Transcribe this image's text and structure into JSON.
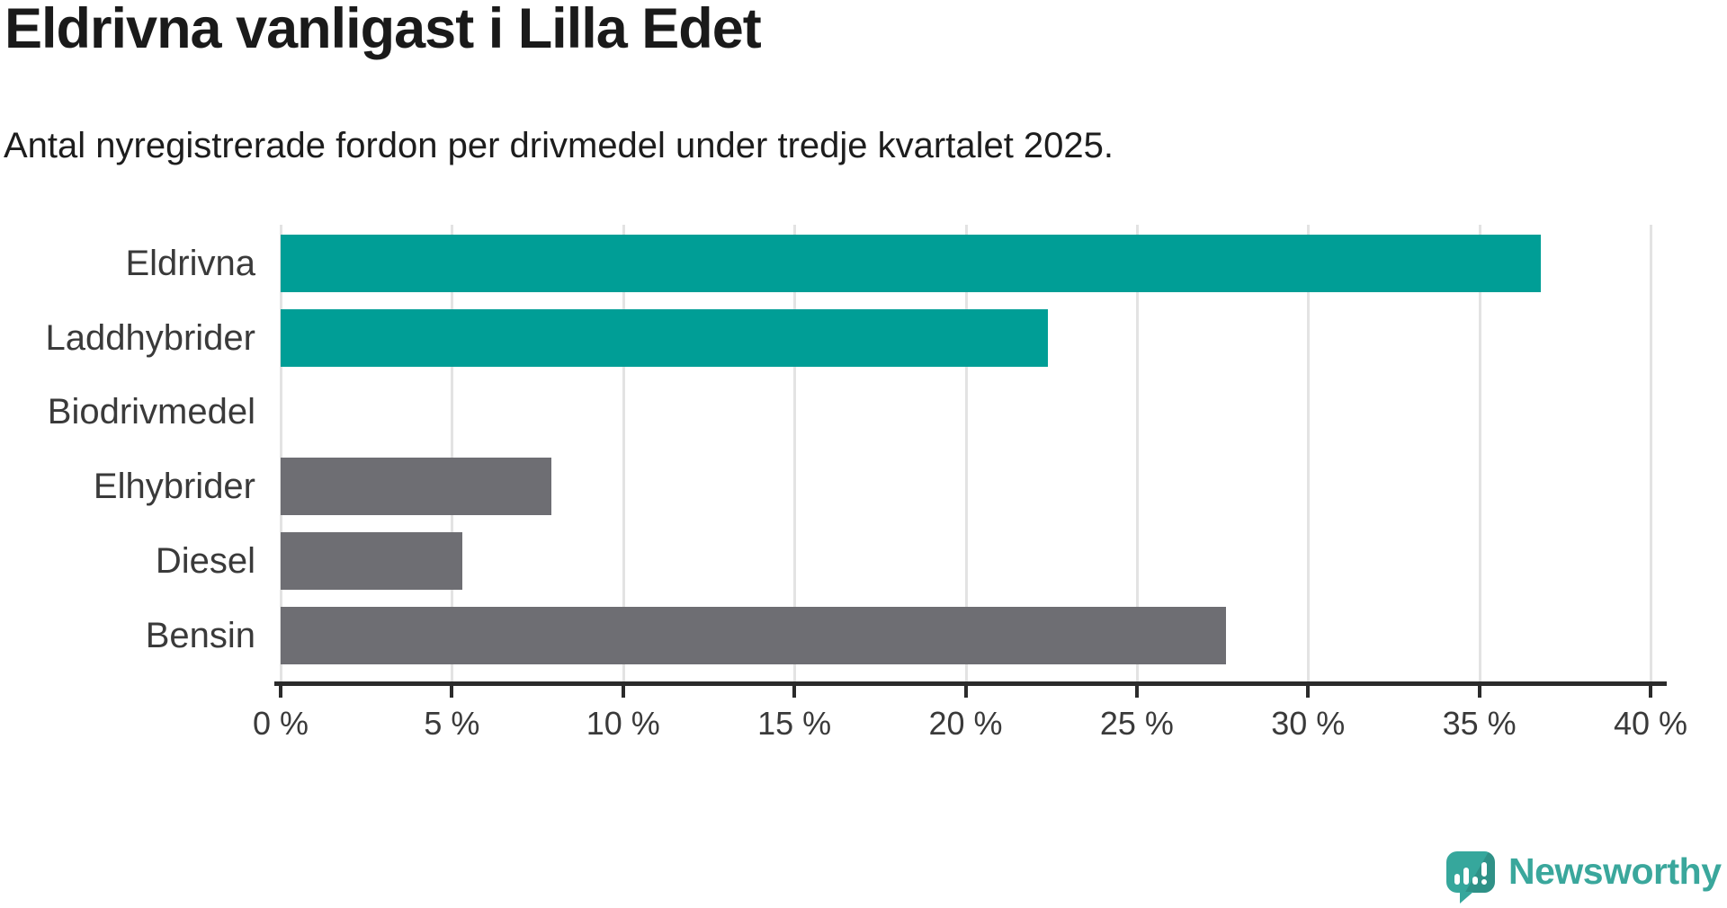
{
  "title": "Eldrivna vanligast i Lilla Edet",
  "subtitle": "Antal nyregistrerade fordon per drivmedel under tredje kvartalet 2025.",
  "chart_data": {
    "type": "bar",
    "orientation": "horizontal",
    "title": "Eldrivna vanligast i Lilla Edet",
    "subtitle": "Antal nyregistrerade fordon per drivmedel under tredje kvartalet 2025.",
    "categories": [
      "Eldrivna",
      "Laddhybrider",
      "Biodrivmedel",
      "Elhybrider",
      "Diesel",
      "Bensin"
    ],
    "values": [
      36.8,
      22.4,
      0,
      7.9,
      5.3,
      27.6
    ],
    "unit": "%",
    "xlim": [
      0,
      40
    ],
    "x_tick_values": [
      0,
      5,
      10,
      15,
      20,
      25,
      30,
      35,
      40
    ],
    "x_tick_labels": [
      "0 %",
      "5 %",
      "10 %",
      "15 %",
      "20 %",
      "25 %",
      "30 %",
      "35 %",
      "40 %"
    ],
    "grid": true,
    "gridline_color": "#e3e3e3",
    "axis_color": "#2b2b2b",
    "label_color": "#3a3a3a",
    "highlight_color": "#009e96",
    "default_color": "#6e6e73",
    "bar_colors": [
      "#009e96",
      "#009e96",
      "#6e6e73",
      "#6e6e73",
      "#6e6e73",
      "#6e6e73"
    ]
  },
  "branding": {
    "logo_text": "Newsworthy",
    "logo_color": "#3aa79c",
    "logo_icon": "newsworthy-speech-bubble-barchart-icon"
  }
}
